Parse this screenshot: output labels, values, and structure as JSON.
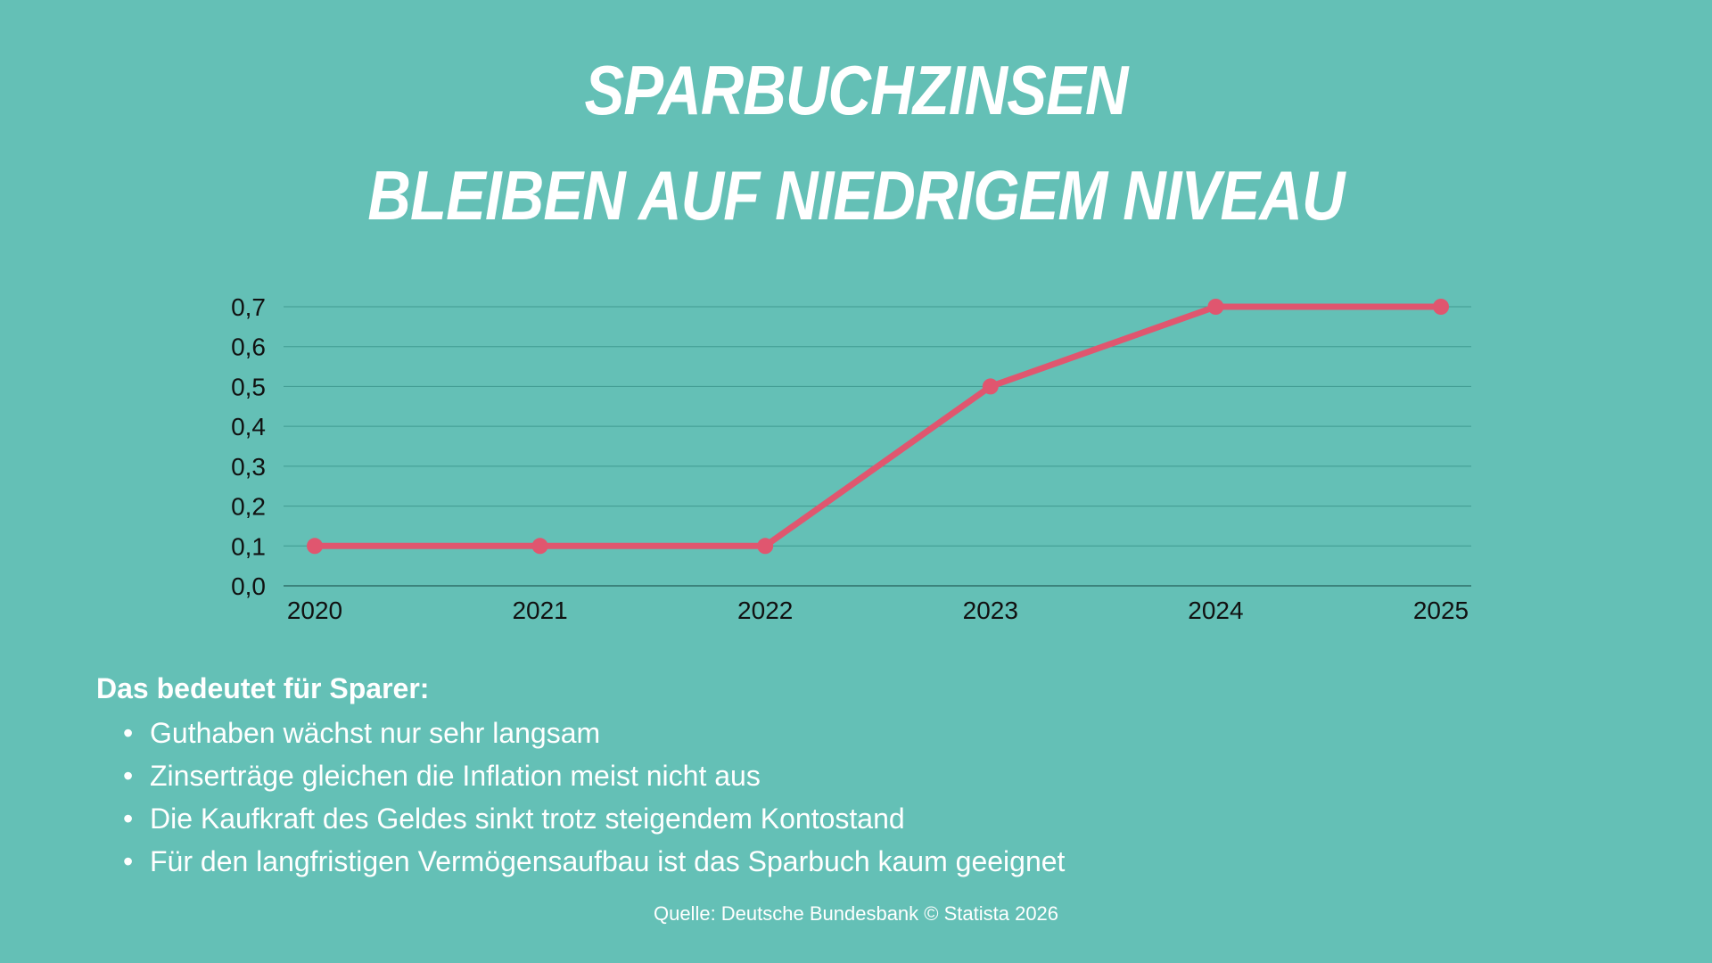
{
  "title": {
    "line1": "SPARBUCHZINSEN",
    "line2": "BLEIBEN AUF NIEDRIGEM NIVEAU"
  },
  "colors": {
    "background": "#64c0b6",
    "line": "#e0566f",
    "grid": "#3f9a90",
    "text": "#ffffff",
    "axis_text": "#111111"
  },
  "chart_data": {
    "type": "line",
    "title": "SPARBUCHZINSEN BLEIBEN AUF NIEDRIGEM NIVEAU",
    "xlabel": "",
    "ylabel": "",
    "categories": [
      "2020",
      "2021",
      "2022",
      "2023",
      "2024",
      "2025"
    ],
    "values": [
      0.1,
      0.1,
      0.1,
      0.5,
      0.7,
      0.7
    ],
    "y_ticks": [
      "0,0",
      "0,1",
      "0,2",
      "0,3",
      "0,4",
      "0,5",
      "0,6",
      "0,7"
    ],
    "ylim": [
      0,
      0.7
    ],
    "grid": true,
    "legend": "none"
  },
  "notes": {
    "heading": "Das bedeutet für Sparer:",
    "items": [
      "Guthaben wächst nur sehr langsam",
      "Zinserträge gleichen die Inflation meist nicht aus",
      "Die Kaufkraft des Geldes sinkt trotz steigendem Kontostand",
      "Für den langfristigen Vermögensaufbau ist das Sparbuch kaum geeignet"
    ],
    "bullet": "•"
  },
  "source": "Quelle: Deutsche Bundesbank © Statista 2026"
}
